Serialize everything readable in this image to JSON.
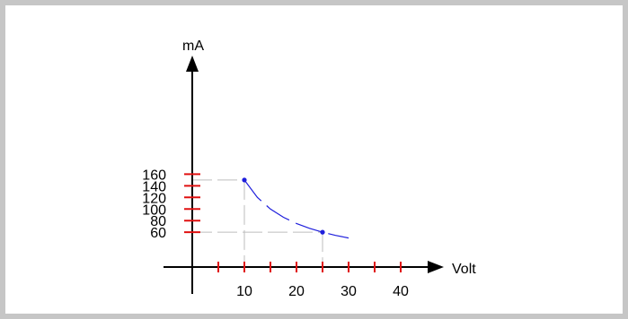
{
  "chart_data": {
    "type": "line",
    "title": "",
    "xlabel": "Volt",
    "ylabel": "mA",
    "x_ticks": [
      10,
      20,
      30,
      40
    ],
    "x_minor_ticks": [
      5,
      15,
      25,
      35
    ],
    "y_ticks": [
      60,
      80,
      100,
      120,
      140,
      160
    ],
    "x_range": [
      0,
      45
    ],
    "y_range": [
      0,
      180
    ],
    "grid": false,
    "legend": "none",
    "series": [
      {
        "name": "",
        "style": "dashed",
        "x": [
          10,
          12.5,
          15,
          17.5,
          20,
          22.5,
          25,
          27.5,
          30
        ],
        "y": [
          150,
          120,
          100,
          85.7,
          75,
          66.7,
          60,
          54.5,
          50
        ]
      }
    ],
    "points": [
      {
        "x": 10,
        "y": 150
      },
      {
        "x": 25,
        "y": 60
      }
    ],
    "colors": {
      "curve": "#1f1fdc",
      "tick": "#e01010",
      "guide": "#bdbdbd",
      "axis": "#000000",
      "frame": "#c6c6c6"
    }
  }
}
